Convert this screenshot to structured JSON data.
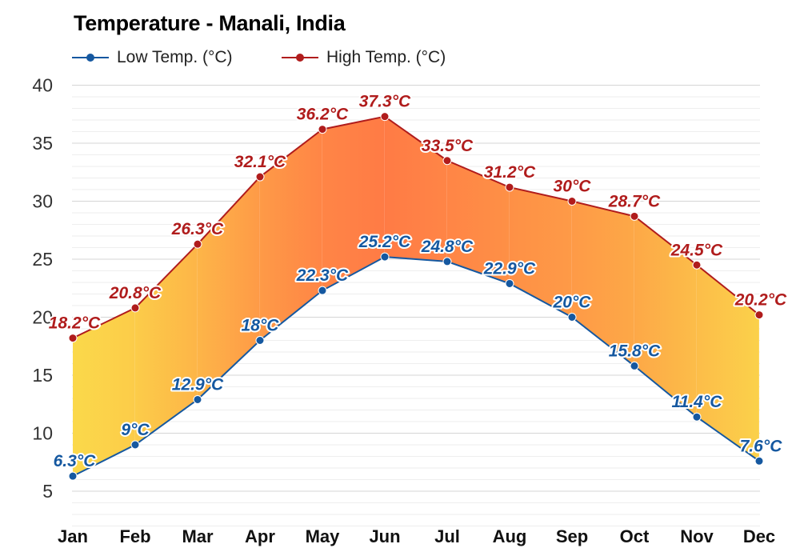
{
  "chart_data": {
    "type": "area",
    "title": "Temperature - Manali, India",
    "categories": [
      "Jan",
      "Feb",
      "Mar",
      "Apr",
      "May",
      "Jun",
      "Jul",
      "Aug",
      "Sep",
      "Oct",
      "Nov",
      "Dec"
    ],
    "series": [
      {
        "name": "Low Temp. (°C)",
        "color": "#1558a0",
        "values": [
          6.3,
          9,
          12.9,
          18,
          22.3,
          25.2,
          24.8,
          22.9,
          20,
          15.8,
          11.4,
          7.6
        ],
        "labels": [
          "6.3°C",
          "9°C",
          "12.9°C",
          "18°C",
          "22.3°C",
          "25.2°C",
          "24.8°C",
          "22.9°C",
          "20°C",
          "15.8°C",
          "11.4°C",
          "7.6°C"
        ]
      },
      {
        "name": "High Temp. (°C)",
        "color": "#b01c1c",
        "values": [
          18.2,
          20.8,
          26.3,
          32.1,
          36.2,
          37.3,
          33.5,
          31.2,
          30,
          28.7,
          24.5,
          20.2
        ],
        "labels": [
          "18.2°C",
          "20.8°C",
          "26.3°C",
          "32.1°C",
          "36.2°C",
          "37.3°C",
          "33.5°C",
          "31.2°C",
          "30°C",
          "28.7°C",
          "24.5°C",
          "20.2°C"
        ]
      }
    ],
    "ylim": [
      5,
      40
    ],
    "yticks": [
      5,
      10,
      15,
      20,
      25,
      30,
      35,
      40
    ],
    "grid": true,
    "legend_position": "top-left",
    "fill_colors": {
      "cool": "#fbd94a",
      "warm": "#ff7b45"
    }
  }
}
